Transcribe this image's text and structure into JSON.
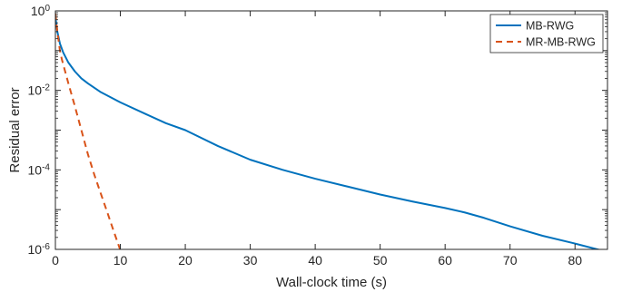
{
  "chart_data": {
    "type": "line",
    "title": "",
    "xlabel": "Wall-clock time (s)",
    "ylabel": "Residual error",
    "xlim": [
      0,
      85
    ],
    "ylim": [
      1e-06,
      1
    ],
    "yscale": "log",
    "grid": false,
    "legend_position": "top-right",
    "x_ticks": [
      {
        "value": 0,
        "label": "0"
      },
      {
        "value": 10,
        "label": "10"
      },
      {
        "value": 20,
        "label": "20"
      },
      {
        "value": 30,
        "label": "30"
      },
      {
        "value": 40,
        "label": "40"
      },
      {
        "value": 50,
        "label": "50"
      },
      {
        "value": 60,
        "label": "60"
      },
      {
        "value": 70,
        "label": "70"
      },
      {
        "value": 80,
        "label": "80"
      }
    ],
    "y_ticks": [
      {
        "value": 1,
        "base": "10",
        "exp": "0"
      },
      {
        "value": 0.01,
        "base": "10",
        "exp": "-2"
      },
      {
        "value": 0.0001,
        "base": "10",
        "exp": "-4"
      },
      {
        "value": 1e-06,
        "base": "10",
        "exp": "-6"
      }
    ],
    "series": [
      {
        "name": "MB-RWG",
        "color": "#0072BD",
        "style": "solid",
        "x": [
          0,
          0.3,
          0.7,
          1.2,
          2,
          3,
          4,
          5,
          7,
          10,
          14,
          17,
          20,
          25,
          30,
          35,
          40,
          45,
          50,
          55,
          60,
          63,
          66,
          70,
          75,
          80,
          84
        ],
        "y": [
          0.7,
          0.3,
          0.15,
          0.09,
          0.05,
          0.03,
          0.02,
          0.015,
          0.009,
          0.005,
          0.0025,
          0.0015,
          0.001,
          0.0004,
          0.00018,
          0.0001,
          6e-05,
          3.8e-05,
          2.4e-05,
          1.6e-05,
          1.1e-05,
          8.5e-06,
          6.2e-06,
          3.8e-06,
          2.2e-06,
          1.4e-06,
          9.5e-07
        ]
      },
      {
        "name": "MR-MB-RWG",
        "color": "#D95319",
        "style": "dashed",
        "x": [
          0,
          0.3,
          0.7,
          1,
          2,
          3,
          4,
          5,
          6,
          7,
          8,
          9,
          10
        ],
        "y": [
          0.85,
          0.3,
          0.1,
          0.06,
          0.015,
          0.004,
          0.001,
          0.00025,
          7.5e-05,
          2.5e-05,
          8.5e-06,
          2.8e-06,
          9.5e-07
        ]
      }
    ]
  }
}
